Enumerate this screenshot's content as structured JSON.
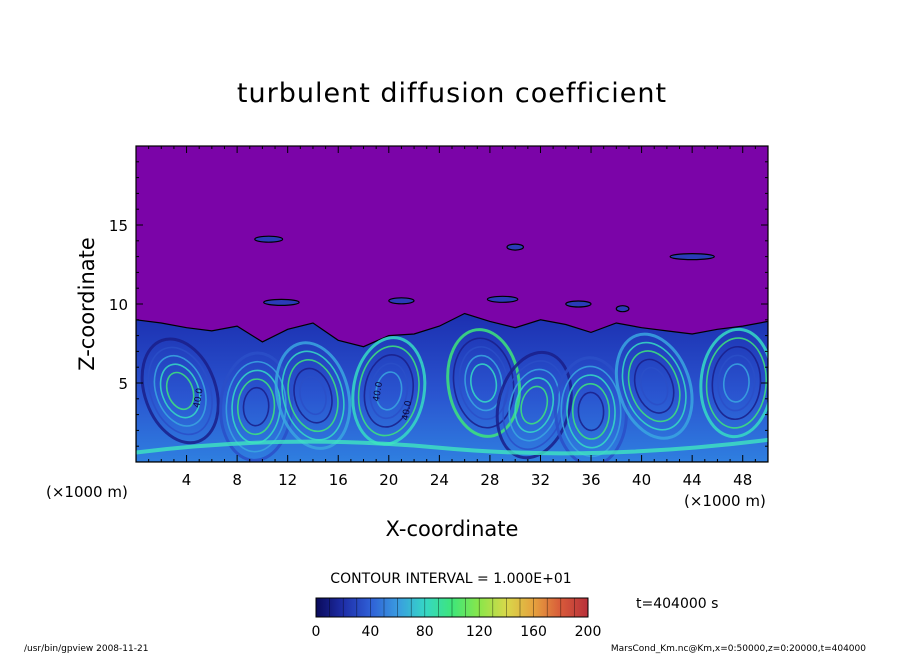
{
  "chart_data": {
    "type": "heatmap",
    "title": "turbulent diffusion coefficient",
    "xlabel": "X-coordinate",
    "ylabel": "Z-coordinate",
    "x_unit": "(×1000 m)",
    "y_unit": "(×1000 m)",
    "xlim": [
      0,
      50
    ],
    "ylim": [
      0,
      20
    ],
    "x_ticks": [
      4,
      8,
      12,
      16,
      20,
      24,
      28,
      32,
      36,
      40,
      44,
      48
    ],
    "y_ticks": [
      5,
      10,
      15
    ],
    "contour_interval_text": "CONTOUR INTERVAL = 1.000E+01",
    "time_text": "t=404000 s",
    "colorbar": {
      "range": [
        0,
        200
      ],
      "ticks": [
        0,
        40,
        80,
        120,
        160,
        200
      ],
      "colors": [
        "#0a0a5a",
        "#1e2ea8",
        "#2f5fd6",
        "#3a9be0",
        "#35d6c6",
        "#3ee67a",
        "#8ae64a",
        "#d8d84a",
        "#e6a23e",
        "#d85a3a",
        "#b8303a"
      ]
    },
    "contour_labels": [
      "40.0",
      "40.0",
      "40.0"
    ],
    "background_color": "#7b04a8",
    "mixed_layer_top_km": [
      9,
      8.8,
      8.5,
      8.3,
      8.6,
      7.6,
      8.4,
      8.8,
      7.7,
      7.3,
      8.0,
      8.1,
      8.6,
      9.4,
      8.9,
      8.5,
      9.0,
      8.7,
      8.2,
      8.8,
      8.5,
      8.3,
      8.1,
      8.4,
      8.6,
      8.9
    ]
  },
  "footer": {
    "left": "/usr/bin/gpview   2008-11-21",
    "right": "MarsCond_Km.nc@Km,x=0:50000,z=0:20000,t=404000"
  }
}
